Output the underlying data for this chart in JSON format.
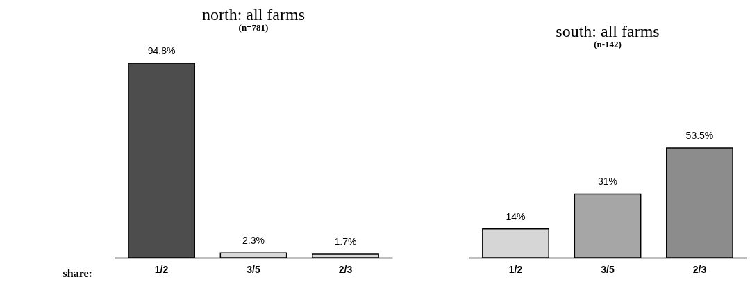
{
  "chart_data": [
    {
      "type": "bar",
      "title": "north: all farms",
      "subtitle": "(n=781)",
      "xlabel": "share:",
      "categories": [
        "1/2",
        "3/5",
        "2/3"
      ],
      "values": [
        94.8,
        2.3,
        1.7
      ],
      "value_labels": [
        "94.8%",
        "2.3%",
        "1.7%"
      ],
      "colors": [
        "#4d4d4d",
        "#d9d9d9",
        "#d9d9d9"
      ]
    },
    {
      "type": "bar",
      "title": "south: all farms",
      "subtitle": "(n-142)",
      "categories": [
        "1/2",
        "3/5",
        "2/3"
      ],
      "values": [
        14,
        31,
        53.5
      ],
      "value_labels": [
        "14%",
        "31%",
        "53.5%"
      ],
      "colors": [
        "#d6d6d6",
        "#a6a6a6",
        "#8c8c8c"
      ]
    }
  ]
}
